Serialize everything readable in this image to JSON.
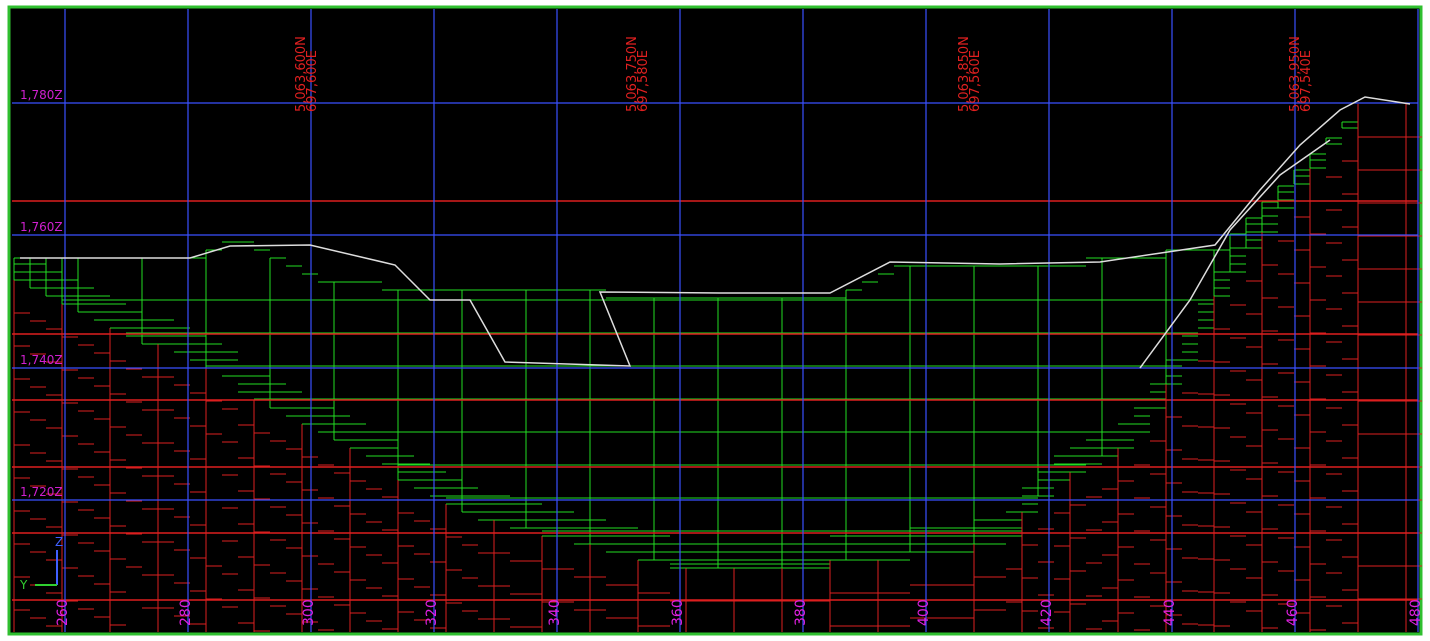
{
  "z_labels": [
    "1,780Z",
    "1,760Z",
    "1,740Z",
    "1,720Z"
  ],
  "x_labels": [
    "260",
    "280",
    "300",
    "320",
    "340",
    "360",
    "380",
    "400",
    "420",
    "440",
    "460",
    "480"
  ],
  "section_labels": [
    {
      "north": "5,063,600N",
      "east": "697,600E"
    },
    {
      "north": "5,063,750N",
      "east": "697,580E"
    },
    {
      "north": "5,063,850N",
      "east": "697,560E"
    },
    {
      "north": "5,063,950N",
      "east": "697,540E"
    }
  ],
  "axis_triad": {
    "y": "Y",
    "z": "Z"
  }
}
